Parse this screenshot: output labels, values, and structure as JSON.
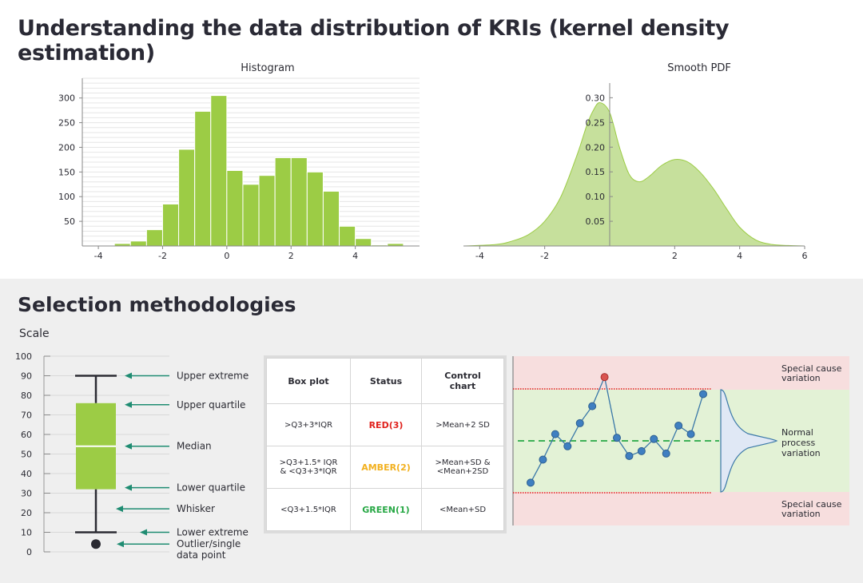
{
  "page": {
    "title": "Understanding the data distribution of KRIs (kernel density estimation)",
    "section_title": "Selection methodologies"
  },
  "colors": {
    "accent_green": "#9ccc45",
    "pdf_fill": "#c6e09c",
    "normal_band": "#e3f2d6",
    "special_band": "#f7dede",
    "red": "#e0211c",
    "amber": "#f2b01e",
    "green": "#27a845",
    "marker": "#3a78a8"
  },
  "chart_data": [
    {
      "type": "bar",
      "title": "Histogram",
      "bin_edges": [
        -3.5,
        -3,
        -2.5,
        -2,
        -1.5,
        -1,
        -0.5,
        0,
        0.5,
        1,
        1.5,
        2,
        2.5,
        3,
        3.5,
        4,
        4.5,
        5,
        5.5
      ],
      "values": [
        5,
        10,
        33,
        85,
        196,
        273,
        305,
        153,
        125,
        143,
        179,
        179,
        150,
        111,
        40,
        15,
        2,
        5
      ],
      "xlim": [
        -4.5,
        6
      ],
      "ylim": [
        0,
        340
      ],
      "xticks": [
        "-4",
        "-2",
        "0",
        "2",
        "4"
      ],
      "xtick_values": [
        -4,
        -2,
        0,
        2,
        4
      ],
      "yticks": [
        "50",
        "100",
        "150",
        "200",
        "250",
        "300"
      ],
      "ytick_values": [
        50,
        100,
        150,
        200,
        250,
        300
      ],
      "grid": true
    },
    {
      "type": "area",
      "title": "Smooth PDF",
      "x": [
        -4.5,
        -3.5,
        -3,
        -2.5,
        -2,
        -1.5,
        -1,
        -0.7,
        -0.5,
        -0.3,
        0,
        0.3,
        0.6,
        0.9,
        1.2,
        1.6,
        2,
        2.4,
        2.8,
        3.2,
        3.6,
        4,
        4.5,
        5,
        5.5,
        6
      ],
      "y": [
        0,
        0.003,
        0.01,
        0.023,
        0.05,
        0.1,
        0.185,
        0.245,
        0.275,
        0.29,
        0.27,
        0.2,
        0.145,
        0.13,
        0.14,
        0.163,
        0.175,
        0.17,
        0.148,
        0.115,
        0.075,
        0.038,
        0.012,
        0.003,
        0.001,
        0
      ],
      "xlim": [
        -4.5,
        6
      ],
      "ylim": [
        0,
        0.32
      ],
      "xticks": [
        "-4",
        "-2",
        "2",
        "4",
        "6"
      ],
      "xtick_values": [
        -4,
        -2,
        2,
        4,
        6
      ],
      "yticks": [
        "0.05",
        "0.10",
        "0.15",
        "0.20",
        "0.25",
        "0.30"
      ],
      "ytick_values": [
        0.05,
        0.1,
        0.15,
        0.2,
        0.25,
        0.3
      ]
    }
  ],
  "boxplot": {
    "scale_label": "Scale",
    "ticks": [
      "100",
      "90",
      "80",
      "70",
      "60",
      "50",
      "40",
      "30",
      "20",
      "10",
      "0"
    ],
    "tick_values": [
      100,
      90,
      80,
      70,
      60,
      50,
      40,
      30,
      20,
      10,
      0
    ],
    "upper_extreme": 90,
    "upper_quartile": 76,
    "median": 54,
    "lower_quartile": 32,
    "lower_extreme": 10,
    "outlier": 4,
    "labels": {
      "upper_extreme": "Upper extreme",
      "upper_quartile": "Upper quartile",
      "median": "Median",
      "lower_quartile": "Lower quartile",
      "whisker": "Whisker",
      "lower_extreme": "Lower extreme",
      "outlier_line1": "Outlier/single",
      "outlier_line2": "data point"
    }
  },
  "table": {
    "headers": {
      "box_plot": "Box plot",
      "status": "Status",
      "control_line1": "Control",
      "control_line2": "chart"
    },
    "rows": [
      {
        "box_plot_1": ">Q3+3*IQR",
        "box_plot_2": "",
        "status": "RED(3)",
        "control_1": ">Mean+2 SD",
        "control_2": ""
      },
      {
        "box_plot_1": ">Q3+1.5* IQR",
        "box_plot_2": "& <Q3+3*IQR",
        "status": "AMBER(2)",
        "control_1": ">Mean+SD &",
        "control_2": "<Mean+2SD"
      },
      {
        "box_plot_1": "<Q3+1.5*IQR",
        "box_plot_2": "",
        "status": "GREEN(1)",
        "control_1": "<Mean+SD",
        "control_2": ""
      }
    ]
  },
  "control_chart": {
    "points": [
      0.95,
      0.76,
      0.55,
      0.65,
      0.46,
      0.32,
      0.08,
      0.58,
      0.73,
      0.69,
      0.59,
      0.71,
      0.48,
      0.55,
      0.22
    ],
    "outlier_index": 6,
    "labels": {
      "special_top_1": "Special cause",
      "special_top_2": "variation",
      "normal_1": "Normal",
      "normal_2": "process",
      "normal_3": "variation",
      "special_bottom_1": "Special cause",
      "special_bottom_2": "variation"
    }
  }
}
